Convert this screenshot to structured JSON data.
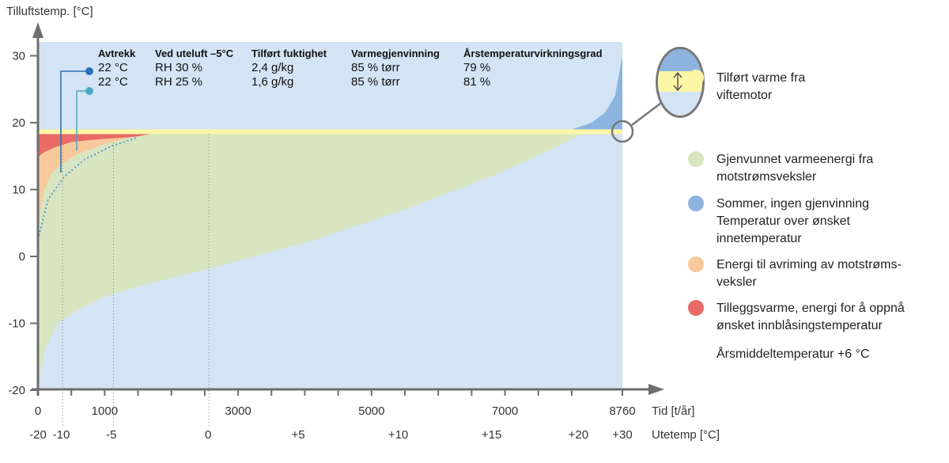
{
  "chart_data": {
    "type": "area",
    "y_axis_title": "Tilluftstemp. [°C]",
    "ylim": [
      -20,
      32
    ],
    "y_ticks": [
      30,
      20,
      10,
      0,
      -10,
      -20
    ],
    "xlim": [
      0,
      8760
    ],
    "x_tick_labels": [
      {
        "x": 0,
        "label": "0"
      },
      {
        "x": 1000,
        "label": "1000"
      },
      {
        "x": 3000,
        "label": "3000"
      },
      {
        "x": 5000,
        "label": "5000"
      },
      {
        "x": 7000,
        "label": "7000"
      },
      {
        "x": 8760,
        "label": "8760"
      }
    ],
    "x_minor_ticks": [
      500,
      1500,
      2000,
      2500,
      3500,
      4000,
      4500,
      5500,
      6000,
      6500,
      7500,
      8000
    ],
    "x_axis_title": "Tid [t/år]",
    "x2_tick_labels": [
      {
        "x": 0,
        "label": "-20"
      },
      {
        "x": 350,
        "label": "-10"
      },
      {
        "x": 1100,
        "label": "-5"
      },
      {
        "x": 2550,
        "label": "0"
      },
      {
        "x": 3900,
        "label": "+5"
      },
      {
        "x": 5400,
        "label": "+10"
      },
      {
        "x": 6800,
        "label": "+15"
      },
      {
        "x": 8100,
        "label": "+20"
      },
      {
        "x": 8760,
        "label": "+30"
      }
    ],
    "x2_axis_title": "Utetemp [°C]",
    "reference_lines_x": [
      370,
      1130,
      2560
    ],
    "supply_setpoint_band": [
      18.3,
      19.0
    ],
    "outdoor_temperature_curve": [
      [
        0,
        -20
      ],
      [
        100,
        -14
      ],
      [
        300,
        -10
      ],
      [
        600,
        -8
      ],
      [
        1000,
        -6
      ],
      [
        1500,
        -4.5
      ],
      [
        2500,
        -2
      ],
      [
        4000,
        2
      ],
      [
        5500,
        7
      ],
      [
        6800,
        12
      ],
      [
        7700,
        16
      ],
      [
        8200,
        18.5
      ],
      [
        8760,
        20
      ]
    ],
    "summer_curve": [
      [
        8000,
        19
      ],
      [
        8300,
        20
      ],
      [
        8500,
        21.5
      ],
      [
        8650,
        24
      ],
      [
        8760,
        30
      ]
    ],
    "recovered_supply_curve_30": [
      [
        0,
        14.8
      ],
      [
        80,
        15.5
      ],
      [
        250,
        16.3
      ],
      [
        500,
        17.1
      ],
      [
        900,
        17.5
      ],
      [
        1500,
        17.9
      ],
      [
        2560,
        18.3
      ]
    ],
    "recovered_supply_curve_25": [
      [
        0,
        2.5
      ],
      [
        40,
        7
      ],
      [
        100,
        10
      ],
      [
        200,
        12.3
      ],
      [
        350,
        13.8
      ],
      [
        600,
        15.3
      ],
      [
        1000,
        16.8
      ],
      [
        1400,
        17.8
      ],
      [
        1700,
        18.3
      ]
    ],
    "info_table": {
      "headers": [
        "Avtrekk",
        "Ved uteluft –5°C",
        "Tilført fuktighet",
        "Varmegjenvinning",
        "Årstemperaturvirkningsgrad"
      ],
      "rows": [
        [
          "22 °C",
          "RH 30 %",
          "2,4 g/kg",
          "85 % tørr",
          "79 %"
        ],
        [
          "22 °C",
          "RH 25 %",
          "1,6 g/kg",
          "85 % tørr",
          "81 %"
        ]
      ],
      "row_marker_colors": [
        "#2a6db8",
        "#4aa8bf"
      ]
    },
    "colors": {
      "background": "#d4e4f5",
      "recovered": "#d7e6c1",
      "summer": "#8db4df",
      "defrost": "#f8c99a",
      "extra_heat": "#e96a67",
      "fan_heat": "#fcf7a6",
      "axis": "#6e6e6e"
    },
    "legend": [
      {
        "key": "fan_heat",
        "color": "#fcf7a6",
        "text": "Tilført varme fra\nviftemotor"
      },
      {
        "key": "recovered",
        "color": "#d7e6c1",
        "text": "Gjenvunnet varmeenergi fra\nmotstrømsveksler"
      },
      {
        "key": "summer",
        "color": "#8db4df",
        "text": "Sommer, ingen gjenvinning\nTemperatur over ønsket\ninnetemperatur"
      },
      {
        "key": "defrost",
        "color": "#f8c99a",
        "text": "Energi til avriming av motstrøms-\nveksler"
      },
      {
        "key": "extra_heat",
        "color": "#e96a67",
        "text": "Tilleggsvarme, energi for å oppnå\nønsket innblåsingstemperatur"
      }
    ],
    "annotation": "Årsmiddeltemperatur +6 °C"
  }
}
